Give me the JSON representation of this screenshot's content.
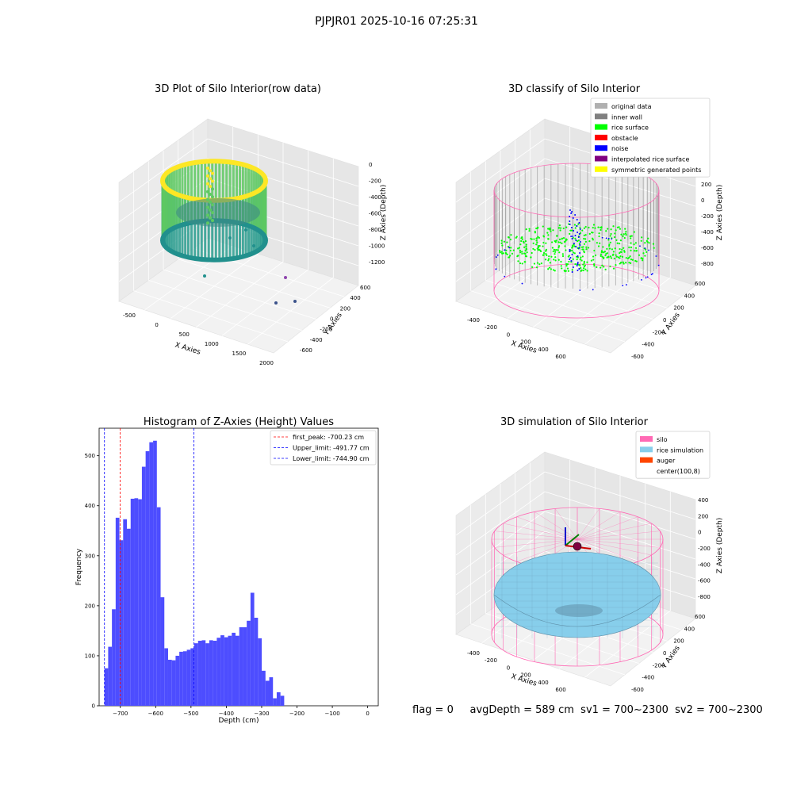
{
  "figure": {
    "suptitle": "PJPJR01 2025-10-16 07:25:31",
    "footer": "flag = 0     avgDepth = 589 cm  sv1 = 700~2300  sv2 = 700~2300"
  },
  "colors": {
    "viridis_dark": "#3b528b",
    "viridis_mid": "#21908d",
    "viridis_light": "#5ec962",
    "viridis_yellow": "#fde725",
    "inner_wall": "#808080",
    "rice_surface": "#00ff00",
    "obstacle": "#ff0000",
    "noise": "#0000ff",
    "interpolated": "#800080",
    "symmetric": "#ffff00",
    "original": "#b0b0b0",
    "silo": "#ff69b4",
    "rice_sim": "#87ceeb",
    "auger": "#ff4500",
    "hist_bar": "#4d4dff"
  },
  "chart_data": [
    {
      "type": "scatter",
      "title": "3D Plot of Silo Interior(row data)",
      "xlabel": "X Axies",
      "ylabel": "Y Axies",
      "zlabel": "Z Axies (Depth)",
      "x_ticks": [
        "-500",
        "0",
        "500",
        "1000",
        "1500",
        "2000"
      ],
      "y_ticks": [
        "600",
        "400",
        "200",
        "0",
        "-200",
        "-400",
        "-600"
      ],
      "z_ticks": [
        "0",
        "-200",
        "-400",
        "-600",
        "-800",
        "-1000",
        "-1200"
      ],
      "xlim": [
        -700,
        2000
      ],
      "ylim": [
        -700,
        700
      ],
      "zlim": [
        -1300,
        50
      ]
    },
    {
      "type": "scatter",
      "title": "3D classify of Silo Interior",
      "xlabel": "X Axies",
      "ylabel": "Y Axies",
      "zlabel": "Z Axies (Depth)",
      "x_ticks": [
        "-400",
        "-200",
        "0",
        "200",
        "400",
        "600"
      ],
      "y_ticks": [
        "600",
        "400",
        "200",
        "0",
        "-200",
        "-400",
        "-600"
      ],
      "z_ticks": [
        "200",
        "0",
        "-200",
        "-400",
        "-600",
        "-800"
      ],
      "z_top_tick_partial": "0",
      "legend": {
        "placement": "top-right",
        "entries": [
          {
            "label": "original data",
            "color": "#b0b0b0"
          },
          {
            "label": "inner wall",
            "color": "#808080"
          },
          {
            "label": "rice surface",
            "color": "#00ff00"
          },
          {
            "label": "obstacle",
            "color": "#ff0000"
          },
          {
            "label": "noise",
            "color": "#0000ff"
          },
          {
            "label": "interpolated rice surface",
            "color": "#800080"
          },
          {
            "label": "symmetric generated points",
            "color": "#ffff00"
          }
        ]
      }
    },
    {
      "type": "bar",
      "title": "Histogram of Z-Axies (Height) Values",
      "xlabel": "Depth (cm)",
      "ylabel": "Frequency",
      "xlim": [
        -760,
        30
      ],
      "ylim": [
        0,
        555
      ],
      "x_ticks": [
        -700,
        -600,
        -500,
        -400,
        -300,
        -200,
        -100,
        0
      ],
      "y_ticks": [
        0,
        100,
        200,
        300,
        400,
        500
      ],
      "bin_start": -745,
      "bin_width": 10.6,
      "values": [
        75,
        118,
        193,
        376,
        331,
        373,
        354,
        414,
        415,
        413,
        478,
        509,
        527,
        530,
        397,
        217,
        115,
        92,
        91,
        100,
        108,
        109,
        112,
        115,
        125,
        130,
        131,
        125,
        131,
        130,
        136,
        141,
        137,
        140,
        146,
        140,
        157,
        157,
        170,
        226,
        176,
        135,
        70,
        50,
        57,
        15,
        27,
        20
      ],
      "lines": [
        {
          "label": "first_peak: -700.23 cm",
          "x": -700.23,
          "color": "#ff0000"
        },
        {
          "label": "Upper_limit: -491.77 cm",
          "x": -491.77,
          "color": "#0000ff"
        },
        {
          "label": "Lower_limit: -744.90 cm",
          "x": -744.9,
          "color": "#0000ff"
        }
      ],
      "legend": "top-right"
    },
    {
      "type": "scatter",
      "title": "3D simulation of Silo Interior",
      "xlabel": "X Axies",
      "ylabel": "Y Axies",
      "zlabel": "Z Axies (Depth)",
      "x_ticks": [
        "-400",
        "-200",
        "0",
        "200",
        "400",
        "600"
      ],
      "y_ticks": [
        "600",
        "400",
        "200",
        "0",
        "-200",
        "-400",
        "-600"
      ],
      "z_ticks": [
        "400",
        "200",
        "0",
        "-200",
        "-400",
        "-600",
        "-800"
      ],
      "legend": {
        "placement": "top-right",
        "entries": [
          {
            "label": "silo",
            "color": "#ff69b4"
          },
          {
            "label": "rice simulation",
            "color": "#87ceeb"
          },
          {
            "label": "auger",
            "color": "#ff4500"
          },
          {
            "label": "center(100,8)",
            "color": ""
          }
        ]
      }
    }
  ]
}
